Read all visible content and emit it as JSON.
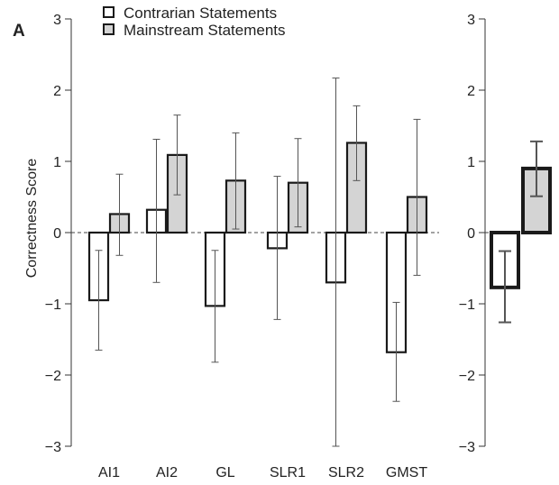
{
  "panel_label": "A",
  "legend": [
    {
      "name": "Contrarian Statements",
      "fill": "#ffffff"
    },
    {
      "name": "Mainstream Statements",
      "fill": "#d4d4d4"
    }
  ],
  "colors": {
    "contrarian_fill": "#ffffff",
    "mainstream_fill": "#d4d4d4",
    "stroke": "#1a1a1a",
    "errorbar": "#555555"
  },
  "chart_data": [
    {
      "type": "bar",
      "panel": "A",
      "title": "",
      "xlabel": "",
      "ylabel": "Correctness Score",
      "ylim": [
        -3,
        3
      ],
      "yticks": [
        -3,
        -2,
        -1,
        0,
        1,
        2,
        3
      ],
      "ytick_labels": [
        "−3",
        "−2",
        "−1",
        "0",
        "1",
        "2",
        "3"
      ],
      "categories": [
        "AI1",
        "AI2",
        "GL",
        "SLR1",
        "SLR2",
        "GMST"
      ],
      "series": [
        {
          "name": "Contrarian Statements",
          "values": [
            -0.95,
            0.32,
            -1.03,
            -0.22,
            -0.7,
            -1.68
          ],
          "err_low": [
            -1.65,
            -0.7,
            -1.82,
            -1.22,
            -3.0,
            -2.37
          ],
          "err_high": [
            -0.25,
            1.31,
            -0.25,
            0.79,
            2.17,
            -0.98
          ]
        },
        {
          "name": "Mainstream Statements",
          "values": [
            0.26,
            1.09,
            0.73,
            0.7,
            1.26,
            0.5
          ],
          "err_low": [
            -0.32,
            0.53,
            0.05,
            0.08,
            0.73,
            -0.6
          ],
          "err_high": [
            0.82,
            1.65,
            1.4,
            1.32,
            1.78,
            1.59
          ]
        }
      ]
    },
    {
      "type": "bar",
      "panel": "summary",
      "ylim": [
        -3,
        3
      ],
      "yticks": [
        -3,
        -2,
        -1,
        0,
        1,
        2,
        3
      ],
      "ytick_labels": [
        "−3",
        "−2",
        "−1",
        "0",
        "1",
        "2",
        "3"
      ],
      "categories": [
        ""
      ],
      "series": [
        {
          "name": "Contrarian Statements",
          "values": [
            -0.77
          ],
          "err_low": [
            -1.26
          ],
          "err_high": [
            -0.26
          ]
        },
        {
          "name": "Mainstream Statements",
          "values": [
            0.9
          ],
          "err_low": [
            0.51
          ],
          "err_high": [
            1.28
          ]
        }
      ]
    }
  ]
}
